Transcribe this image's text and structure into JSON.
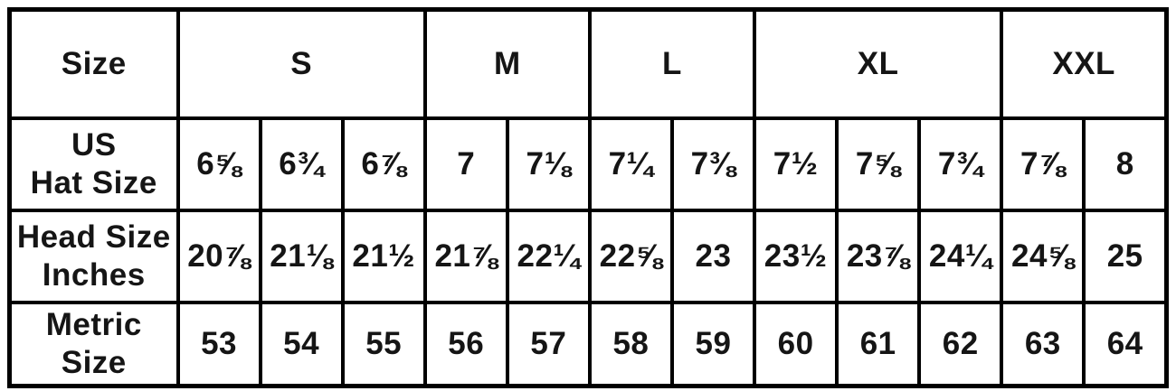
{
  "chart_data": {
    "type": "table",
    "corner_label": "Size",
    "size_groups": [
      {
        "label": "S",
        "colspan": 3
      },
      {
        "label": "M",
        "colspan": 2
      },
      {
        "label": "L",
        "colspan": 2
      },
      {
        "label": "XL",
        "colspan": 3
      },
      {
        "label": "XXL",
        "colspan": 2
      }
    ],
    "rows": [
      {
        "label": "US Hat Size",
        "label_lines": [
          "US",
          "Hat Size"
        ],
        "values": [
          "6⅝",
          "6¾",
          "6⅞",
          "7",
          "7⅛",
          "7¼",
          "7⅜",
          "7½",
          "7⅝",
          "7¾",
          "7⅞",
          "8"
        ]
      },
      {
        "label": "Head Size Inches",
        "label_lines": [
          "Head Size",
          "Inches"
        ],
        "values": [
          "20⅞",
          "21⅛",
          "21½",
          "21⅞",
          "22¼",
          "22⅝",
          "23",
          "23½",
          "23⅞",
          "24¼",
          "24⅝",
          "25"
        ]
      },
      {
        "label": "Metric Size",
        "label_lines": [
          "Metric",
          "Size"
        ],
        "values": [
          "53",
          "54",
          "55",
          "56",
          "57",
          "58",
          "59",
          "60",
          "61",
          "62",
          "63",
          "64"
        ]
      }
    ],
    "layout_hints": {
      "columns_per_group": [
        3,
        2,
        2,
        3,
        2
      ],
      "grid": "on",
      "header_position": "top-and-left"
    }
  },
  "colors": {
    "border": "#000000",
    "text": "#151515",
    "background": "#ffffff"
  }
}
